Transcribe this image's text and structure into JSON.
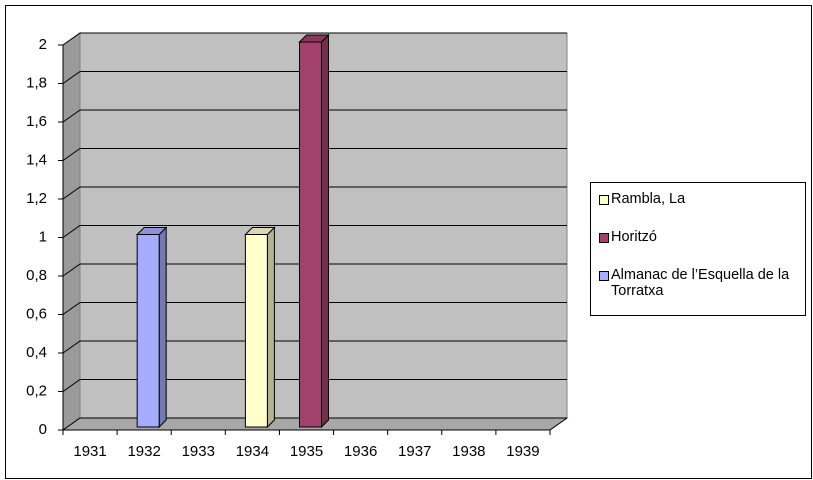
{
  "chart_data": {
    "type": "bar",
    "categories": [
      "1931",
      "1932",
      "1933",
      "1934",
      "1935",
      "1936",
      "1937",
      "1938",
      "1939"
    ],
    "series": [
      {
        "name": "Rambla, La",
        "color": "#ffffcc",
        "values": [
          null,
          null,
          null,
          1,
          null,
          null,
          null,
          null,
          null
        ]
      },
      {
        "name": "Horitzó",
        "color": "#a3416d",
        "values": [
          null,
          null,
          null,
          null,
          2,
          null,
          null,
          null,
          null
        ]
      },
      {
        "name": "Almanac de l’Esquella de la Torratxa",
        "color": "#a6acff",
        "values": [
          null,
          1,
          null,
          null,
          null,
          null,
          null,
          null,
          null
        ]
      }
    ],
    "ylim": [
      0,
      2
    ],
    "yticks": [
      0,
      {
        "value": 0.2,
        "label": "0,2"
      },
      {
        "value": 0.4,
        "label": "0,4"
      },
      {
        "value": 0.6,
        "label": "0,6"
      },
      {
        "value": 0.8,
        "label": "0,8"
      },
      1,
      {
        "value": 1.2,
        "label": "1,2"
      },
      {
        "value": 1.4,
        "label": "1,4"
      },
      {
        "value": 1.6,
        "label": "1,6"
      },
      {
        "value": 1.8,
        "label": "1,8"
      },
      2
    ],
    "grid": true,
    "legend": "right"
  }
}
